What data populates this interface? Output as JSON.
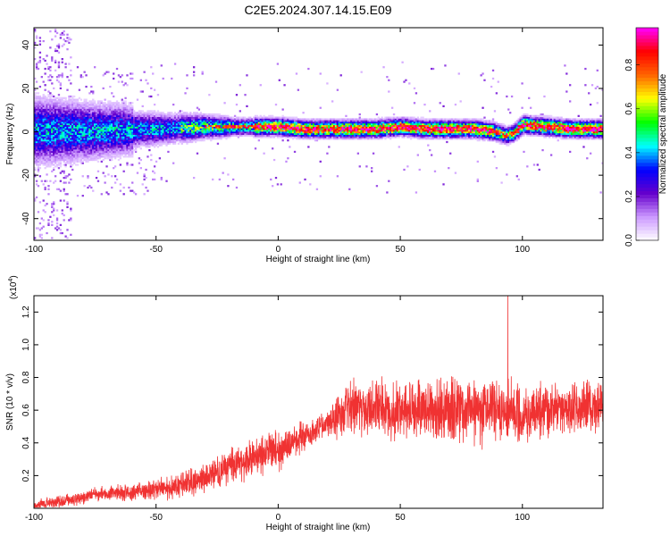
{
  "title": "C2E5.2024.307.14.15.E09",
  "chart_data": [
    {
      "type": "heatmap",
      "xlabel": "Height of straight line (km)",
      "ylabel": "Frequency (Hz)",
      "xlim": [
        -100,
        133
      ],
      "ylim": [
        -50,
        48
      ],
      "xticks": [
        -100,
        -50,
        0,
        50,
        100
      ],
      "yticks": [
        -40,
        -20,
        0,
        20,
        40
      ],
      "colorbar": {
        "label": "Normalized spectral amplitude",
        "range": [
          0,
          0.97
        ],
        "ticks": [
          "0.0",
          "0.2",
          "0.4",
          "0.6",
          "0.8"
        ],
        "colors": [
          "#ffffff",
          "#cc99ff",
          "#6600cc",
          "#0000ff",
          "#00ffff",
          "#00ff00",
          "#ffff00",
          "#ff6600",
          "#ff0000",
          "#ff00ff"
        ]
      },
      "ridge": {
        "x": [
          -100,
          -75,
          -50,
          -30,
          -10,
          0,
          10,
          20,
          30,
          40,
          50,
          60,
          70,
          80,
          88,
          93,
          96,
          100,
          110,
          120,
          133
        ],
        "y": [
          0,
          0,
          1,
          2,
          2,
          2,
          1,
          1,
          1,
          1,
          2,
          1,
          1,
          1,
          0,
          -2,
          -1,
          3,
          2,
          1,
          1
        ]
      }
    },
    {
      "type": "line",
      "xlabel": "Height of straight line (km)",
      "ylabel": "SNR (10 * v/v)",
      "yexp": "(x10",
      "yexp_sup": "4",
      "yexp_close": ")",
      "xlim": [
        -100,
        133
      ],
      "ylim": [
        0,
        1.3
      ],
      "xticks": [
        -100,
        -50,
        0,
        50,
        100
      ],
      "yticks": [
        "0.2",
        "0.4",
        "0.6",
        "0.8",
        "1.0",
        "1.2"
      ],
      "series": [
        {
          "color": "#f03232",
          "mean": {
            "x": [
              -100,
              -90,
              -80,
              -70,
              -60,
              -50,
              -40,
              -30,
              -20,
              -10,
              0,
              10,
              20,
              25,
              28,
              30,
              40,
              50,
              60,
              70,
              80,
              90,
              100,
              110,
              120,
              133
            ],
            "y": [
              0.02,
              0.04,
              0.07,
              0.09,
              0.1,
              0.11,
              0.14,
              0.19,
              0.25,
              0.31,
              0.36,
              0.43,
              0.52,
              0.56,
              0.6,
              0.63,
              0.62,
              0.6,
              0.6,
              0.6,
              0.6,
              0.6,
              0.58,
              0.6,
              0.62,
              0.62
            ]
          },
          "spread": {
            "x": [
              -100,
              -80,
              -60,
              -40,
              -20,
              0,
              20,
              30,
              40,
              60,
              80,
              100,
              120,
              133
            ],
            "y": [
              0.03,
              0.04,
              0.05,
              0.07,
              0.1,
              0.12,
              0.08,
              0.15,
              0.16,
              0.18,
              0.2,
              0.16,
              0.14,
              0.14
            ]
          },
          "max_value": 1.3,
          "max_x": 94
        }
      ]
    }
  ]
}
